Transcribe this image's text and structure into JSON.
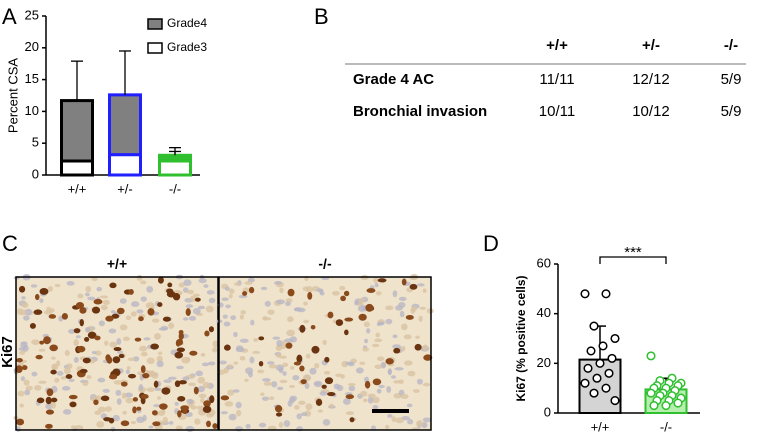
{
  "panel_labels": [
    "A",
    "B",
    "C",
    "D"
  ],
  "chart_data": [
    {
      "type": "stacked-bar",
      "ylabel": "Percent CSA",
      "categories": [
        "+/+",
        "+/-",
        "-/-"
      ],
      "edge_colors": [
        "#000000",
        "#1f1fff",
        "#2fbf2f"
      ],
      "series": [
        {
          "name": "Grade3",
          "color": "#ffffff",
          "values": [
            2.2,
            3.2,
            2.2
          ],
          "errors": [
            3.1,
            2.8,
            1.5
          ]
        },
        {
          "name": "Grade4",
          "color": "#808080",
          "values": [
            9.5,
            9.4,
            0.9
          ],
          "errors": [
            6.2,
            6.9,
            1.2
          ]
        }
      ],
      "ylim": [
        0,
        25
      ],
      "yticks": [
        0,
        5,
        10,
        15,
        20,
        25
      ]
    },
    {
      "type": "bar-dots",
      "ylabel": "Ki67 (% positive cells)",
      "categories": [
        "+/+",
        "-/-"
      ],
      "values": [
        21.5,
        9.5
      ],
      "errors": [
        13.5,
        4.5
      ],
      "colors": [
        "#d4d4d4",
        "#b6efae"
      ],
      "edge_colors": [
        "#000000",
        "#2fbf2f"
      ],
      "points": [
        [
          48,
          48,
          35,
          30,
          27,
          25,
          22,
          20,
          18,
          16,
          14,
          12,
          10,
          8,
          5
        ],
        [
          23,
          14,
          13,
          12,
          12,
          11,
          11,
          10,
          10,
          9,
          8,
          8,
          7,
          7,
          6,
          5,
          5,
          4,
          3,
          3
        ]
      ],
      "significance": "***",
      "ylim": [
        0,
        60
      ],
      "yticks": [
        0,
        20,
        40,
        60
      ]
    }
  ],
  "table": {
    "columns": [
      "+/+",
      "+/-",
      "-/-"
    ],
    "rows": [
      {
        "label": "Grade 4 AC",
        "cells": [
          "11/11",
          "12/12",
          "5/9"
        ]
      },
      {
        "label": "Bronchial invasion",
        "cells": [
          "10/11",
          "10/12",
          "5/9"
        ]
      }
    ]
  },
  "micrograph": {
    "stain": "Ki67",
    "panels": [
      "+/+",
      "-/-"
    ]
  }
}
